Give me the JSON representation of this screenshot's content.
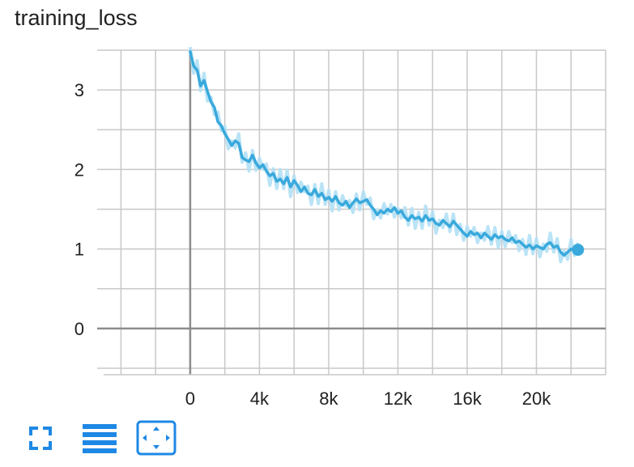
{
  "title": "training_loss",
  "accent": "#39a9dc",
  "toolbar": {
    "buttons": [
      {
        "icon": "fullscreen-icon",
        "color": "#1e88e5"
      },
      {
        "icon": "data-lines-icon",
        "color": "#1e88e5"
      },
      {
        "icon": "fit-domain-icon",
        "color": "#1e88e5"
      }
    ]
  },
  "chart_data": {
    "type": "line",
    "title": "training_loss",
    "xlabel": "",
    "ylabel": "",
    "xlim": [
      -5000,
      24000
    ],
    "ylim": [
      -0.5,
      3.5
    ],
    "x_ticks": [
      "0",
      "4k",
      "8k",
      "12k",
      "16k",
      "20k"
    ],
    "x_tick_values": [
      0,
      4000,
      8000,
      12000,
      16000,
      20000
    ],
    "y_ticks": [
      "0",
      "1",
      "2",
      "3"
    ],
    "y_tick_values": [
      0,
      1,
      2,
      3
    ],
    "grid": true,
    "series": [
      {
        "color": "#39a9dc",
        "smoothed_color": "#39a9dc",
        "raw_color": "#b3e0f5",
        "points": [
          [
            0,
            3.48
          ],
          [
            200,
            3.3
          ],
          [
            400,
            3.25
          ],
          [
            600,
            3.05
          ],
          [
            800,
            3.12
          ],
          [
            1000,
            2.98
          ],
          [
            1200,
            2.85
          ],
          [
            1400,
            2.78
          ],
          [
            1600,
            2.6
          ],
          [
            1800,
            2.55
          ],
          [
            2000,
            2.45
          ],
          [
            2200,
            2.38
          ],
          [
            2400,
            2.3
          ],
          [
            2600,
            2.36
          ],
          [
            2800,
            2.33
          ],
          [
            3000,
            2.15
          ],
          [
            3200,
            2.12
          ],
          [
            3400,
            2.1
          ],
          [
            3600,
            2.18
          ],
          [
            3800,
            2.08
          ],
          [
            4000,
            2.02
          ],
          [
            4200,
            2.06
          ],
          [
            4400,
            1.98
          ],
          [
            4600,
            1.92
          ],
          [
            4800,
            1.95
          ],
          [
            5000,
            1.85
          ],
          [
            5200,
            1.88
          ],
          [
            5400,
            1.82
          ],
          [
            5600,
            1.9
          ],
          [
            5800,
            1.78
          ],
          [
            6000,
            1.86
          ],
          [
            6200,
            1.8
          ],
          [
            6400,
            1.72
          ],
          [
            6600,
            1.78
          ],
          [
            6800,
            1.7
          ],
          [
            7000,
            1.68
          ],
          [
            7200,
            1.75
          ],
          [
            7400,
            1.66
          ],
          [
            7600,
            1.7
          ],
          [
            7800,
            1.62
          ],
          [
            8000,
            1.65
          ],
          [
            8200,
            1.6
          ],
          [
            8400,
            1.66
          ],
          [
            8600,
            1.58
          ],
          [
            8800,
            1.55
          ],
          [
            9000,
            1.6
          ],
          [
            9200,
            1.52
          ],
          [
            9400,
            1.58
          ],
          [
            9600,
            1.63
          ],
          [
            9800,
            1.58
          ],
          [
            10000,
            1.6
          ],
          [
            10200,
            1.62
          ],
          [
            10400,
            1.55
          ],
          [
            10600,
            1.5
          ],
          [
            10800,
            1.43
          ],
          [
            11000,
            1.48
          ],
          [
            11200,
            1.45
          ],
          [
            11400,
            1.5
          ],
          [
            11600,
            1.47
          ],
          [
            11800,
            1.52
          ],
          [
            12000,
            1.45
          ],
          [
            12200,
            1.48
          ],
          [
            12400,
            1.4
          ],
          [
            12600,
            1.36
          ],
          [
            12800,
            1.42
          ],
          [
            13000,
            1.38
          ],
          [
            13200,
            1.4
          ],
          [
            13400,
            1.35
          ],
          [
            13600,
            1.42
          ],
          [
            13800,
            1.36
          ],
          [
            14000,
            1.38
          ],
          [
            14200,
            1.32
          ],
          [
            14400,
            1.3
          ],
          [
            14600,
            1.36
          ],
          [
            14800,
            1.32
          ],
          [
            15000,
            1.28
          ],
          [
            15200,
            1.35
          ],
          [
            15400,
            1.3
          ],
          [
            15600,
            1.25
          ],
          [
            15800,
            1.2
          ],
          [
            16000,
            1.16
          ],
          [
            16200,
            1.22
          ],
          [
            16400,
            1.18
          ],
          [
            16600,
            1.2
          ],
          [
            16800,
            1.14
          ],
          [
            17000,
            1.2
          ],
          [
            17200,
            1.16
          ],
          [
            17400,
            1.12
          ],
          [
            17600,
            1.18
          ],
          [
            17800,
            1.14
          ],
          [
            18000,
            1.16
          ],
          [
            18200,
            1.12
          ],
          [
            18400,
            1.1
          ],
          [
            18600,
            1.14
          ],
          [
            18800,
            1.08
          ],
          [
            19000,
            1.1
          ],
          [
            19200,
            1.06
          ],
          [
            19400,
            1.02
          ],
          [
            19600,
            1.05
          ],
          [
            19800,
            1.0
          ],
          [
            20000,
            1.04
          ],
          [
            20200,
            1.02
          ],
          [
            20400,
            1.0
          ],
          [
            20600,
            1.06
          ],
          [
            20800,
            1.08
          ],
          [
            21000,
            1.02
          ],
          [
            21200,
            1.04
          ],
          [
            21400,
            0.96
          ],
          [
            21600,
            0.92
          ],
          [
            21800,
            0.96
          ],
          [
            22000,
            1.0
          ],
          [
            22200,
            0.98
          ],
          [
            22400,
            0.99
          ]
        ]
      }
    ],
    "last_point": [
      22400,
      0.99
    ]
  }
}
